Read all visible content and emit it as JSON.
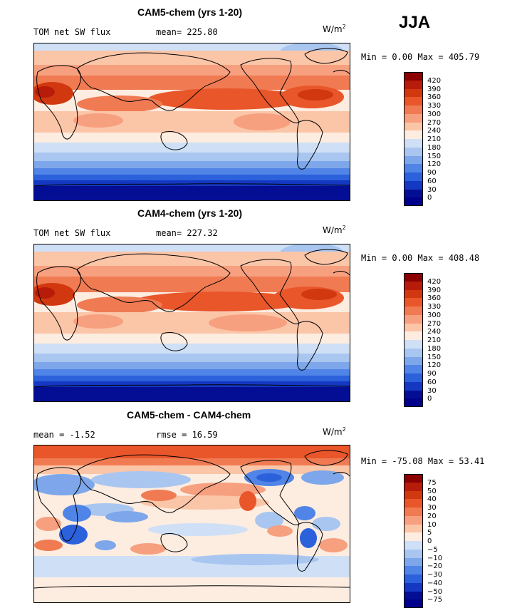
{
  "season": "JJA",
  "panels": [
    {
      "title": "CAM5-chem (yrs 1-20)",
      "left_info": "TOM net SW flux",
      "right_info": "mean= 225.80",
      "unit": "W/m",
      "unit_sup": "2",
      "minmax": "Min =   0.00 Max = 405.79"
    },
    {
      "title": "CAM4-chem (yrs 1-20)",
      "left_info": "TOM net SW flux",
      "right_info": "mean= 227.32",
      "unit": "W/m",
      "unit_sup": "2",
      "minmax": "Min =   0.00 Max = 408.48"
    },
    {
      "title": "CAM5-chem - CAM4-chem",
      "left_info": "mean =  -1.52",
      "right_info": "rmse =  16.59",
      "unit": "W/m",
      "unit_sup": "2",
      "minmax": "Min = -75.08 Max =  53.41"
    }
  ],
  "colorbars": [
    {
      "labels": [
        "420",
        "390",
        "360",
        "330",
        "300",
        "270",
        "240",
        "210",
        "180",
        "150",
        "120",
        "90",
        "60",
        "30",
        "0"
      ],
      "colors": [
        "#8b0000",
        "#b71c0a",
        "#d2380f",
        "#e8562a",
        "#f07b53",
        "#f6a07f",
        "#fbc5a8",
        "#fdece0",
        "#cfe0f6",
        "#a9c6f0",
        "#7da7ea",
        "#5084e6",
        "#2c61dc",
        "#1438c2",
        "#040e94",
        "#00008b"
      ]
    },
    {
      "labels": [
        "420",
        "390",
        "360",
        "330",
        "300",
        "270",
        "240",
        "210",
        "180",
        "150",
        "120",
        "90",
        "60",
        "30",
        "0"
      ],
      "colors": [
        "#8b0000",
        "#b71c0a",
        "#d2380f",
        "#e8562a",
        "#f07b53",
        "#f6a07f",
        "#fbc5a8",
        "#fdece0",
        "#cfe0f6",
        "#a9c6f0",
        "#7da7ea",
        "#5084e6",
        "#2c61dc",
        "#1438c2",
        "#040e94",
        "#00008b"
      ]
    },
    {
      "labels": [
        "75",
        "50",
        "40",
        "30",
        "20",
        "10",
        "5",
        "0",
        "−5",
        "−10",
        "−20",
        "−30",
        "−40",
        "−50",
        "−75"
      ],
      "colors": [
        "#8b0000",
        "#b71c0a",
        "#d2380f",
        "#e8562a",
        "#f07b53",
        "#f6a07f",
        "#fbc5a8",
        "#fdece0",
        "#cfe0f6",
        "#a9c6f0",
        "#7da7ea",
        "#5084e6",
        "#2c61dc",
        "#1438c2",
        "#040e94",
        "#00008b"
      ]
    }
  ]
}
